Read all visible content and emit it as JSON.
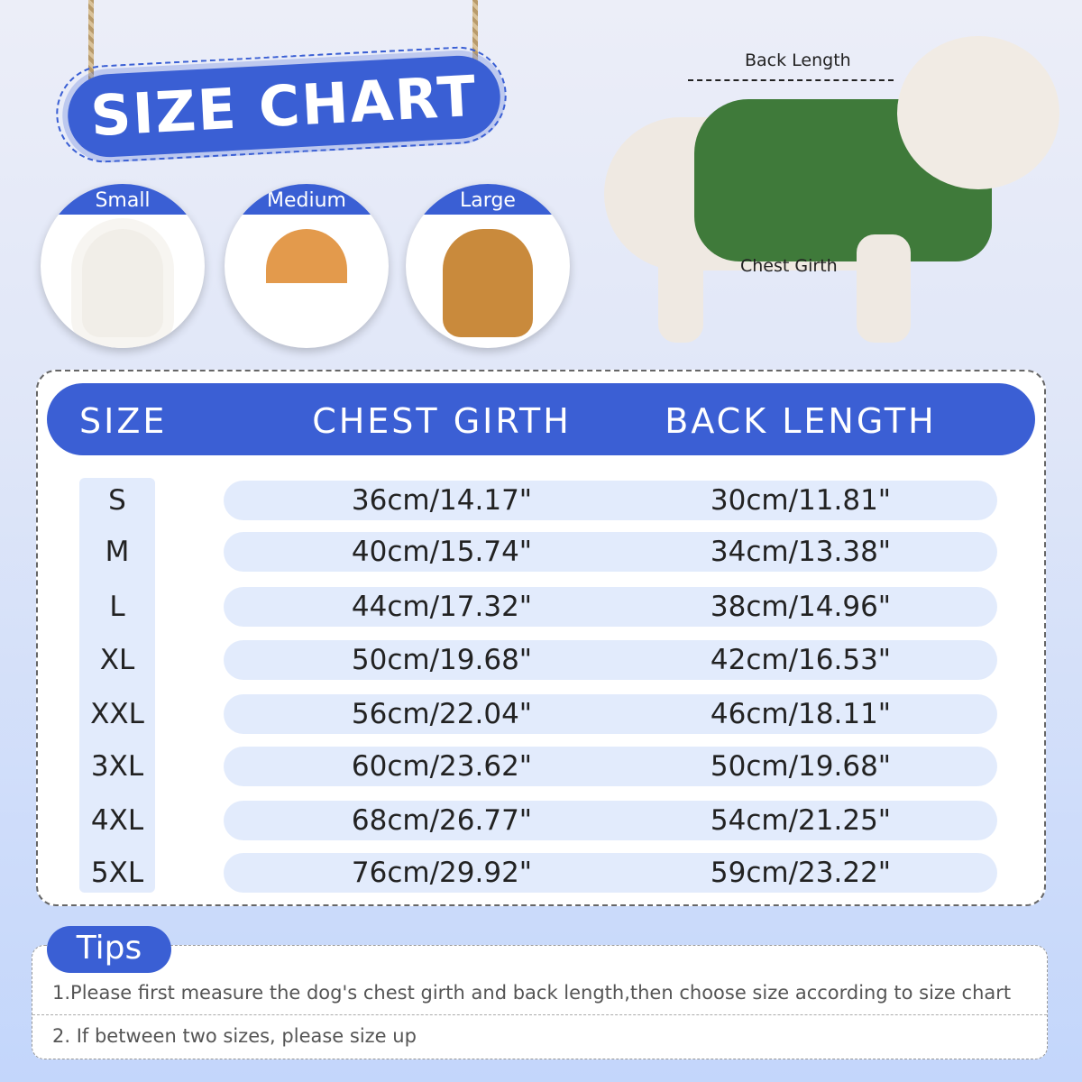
{
  "title": "SIZE CHART",
  "categories": [
    {
      "label": "Small",
      "color": "#f4f1ec"
    },
    {
      "label": "Medium",
      "color": "#e39a4c"
    },
    {
      "label": "Large",
      "color": "#c98a3c"
    }
  ],
  "measure_labels": {
    "back": "Back Length",
    "chest": "Chest Girth"
  },
  "table": {
    "headers": [
      "SIZE",
      "CHEST GIRTH",
      "BACK LENGTH"
    ],
    "rows": [
      [
        "S",
        "36cm/14.17\"",
        "30cm/11.81\""
      ],
      [
        "M",
        "40cm/15.74\"",
        "34cm/13.38\""
      ],
      [
        "L",
        "44cm/17.32\"",
        "38cm/14.96\""
      ],
      [
        "XL",
        "50cm/19.68\"",
        "42cm/16.53\""
      ],
      [
        "XXL",
        "56cm/22.04\"",
        "46cm/18.11\""
      ],
      [
        "3XL",
        "60cm/23.62\"",
        "50cm/19.68\""
      ],
      [
        "4XL",
        "68cm/26.77\"",
        "54cm/21.25\""
      ],
      [
        "5XL",
        "76cm/29.92\"",
        "59cm/23.22\""
      ]
    ]
  },
  "tips": {
    "label": "Tips",
    "items": [
      "1.Please first measure the dog's chest girth and back length,then choose size according to size chart",
      "2. If between two sizes, please size up"
    ]
  },
  "colors": {
    "accent": "#3a5fd4",
    "row_bg": "#e2ebfc",
    "vest": "#3f7a3a"
  }
}
